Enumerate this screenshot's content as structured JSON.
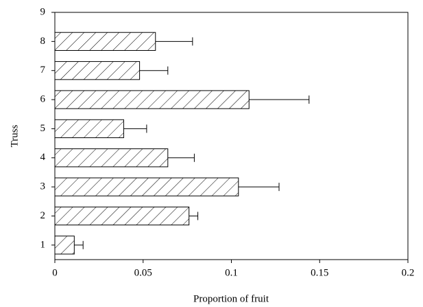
{
  "chart_data": {
    "type": "hbar-error",
    "x_label": "Proportion of fruit",
    "y_label": "Truss",
    "y": [
      1,
      2,
      3,
      4,
      5,
      6,
      7,
      8
    ],
    "values": [
      0.011,
      0.076,
      0.104,
      0.064,
      0.039,
      0.11,
      0.048,
      0.057
    ],
    "errors": [
      0.005,
      0.005,
      0.023,
      0.015,
      0.013,
      0.034,
      0.016,
      0.021
    ],
    "xlim": [
      0,
      0.2
    ],
    "xticks": [
      0,
      0.05,
      0.1,
      0.15,
      0.2
    ],
    "ylim": [
      0.5,
      9
    ],
    "yticks": [
      1,
      2,
      3,
      4,
      5,
      6,
      7,
      8,
      9
    ],
    "color": "#000000"
  }
}
